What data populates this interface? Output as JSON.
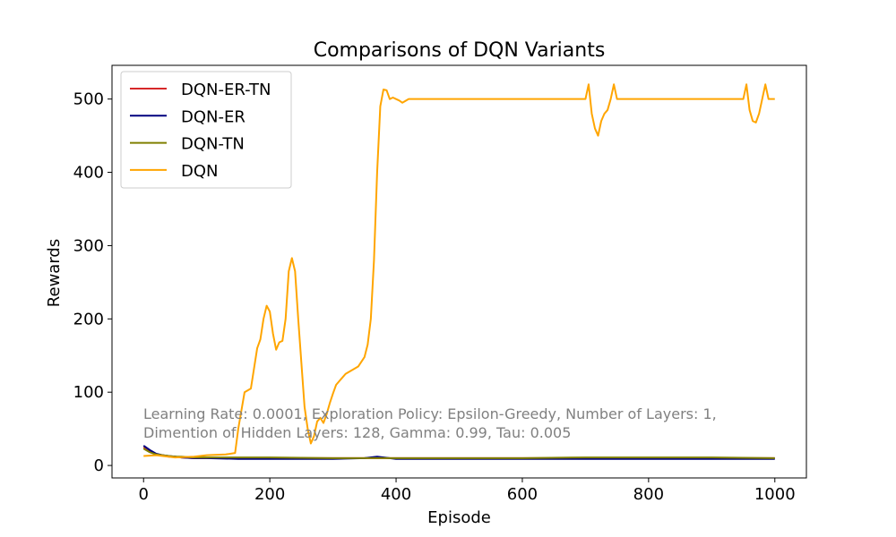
{
  "chart_data": {
    "type": "line",
    "title": "Comparisons of DQN Variants",
    "xlabel": "Episode",
    "ylabel": "Rewards",
    "xlim": [
      -50,
      1050
    ],
    "ylim": [
      -17,
      546
    ],
    "xticks": [
      0,
      200,
      400,
      600,
      800,
      1000
    ],
    "yticks": [
      0,
      100,
      200,
      300,
      400,
      500
    ],
    "xtick_labels": [
      "0",
      "200",
      "400",
      "600",
      "800",
      "1000"
    ],
    "ytick_labels": [
      "0",
      "100",
      "200",
      "300",
      "400",
      "500"
    ],
    "grid": false,
    "legend_position": "top-left",
    "annotation": [
      "Learning Rate: 0.0001, Exploration Policy: Epsilon-Greedy, Number of Layers: 1,",
      "Dimention of Hidden Layers: 128, Gamma: 0.99, Tau: 0.005"
    ],
    "series": [
      {
        "name": "DQN-ER-TN",
        "color": "#d62728",
        "x": [
          0,
          10,
          20,
          30,
          40,
          50,
          60,
          80,
          100,
          150,
          200,
          300,
          400,
          500,
          600,
          700,
          800,
          900,
          1000
        ],
        "y": [
          25,
          20,
          15,
          14,
          12,
          12,
          11,
          10,
          10,
          10,
          10,
          10,
          10,
          10,
          10,
          10,
          10,
          10,
          10
        ]
      },
      {
        "name": "DQN-ER",
        "color": "#00007f",
        "x": [
          0,
          10,
          20,
          30,
          40,
          50,
          60,
          80,
          100,
          150,
          200,
          300,
          350,
          370,
          400,
          500,
          600,
          700,
          800,
          900,
          1000
        ],
        "y": [
          27,
          21,
          16,
          14,
          13,
          12,
          11,
          10,
          10,
          9,
          9,
          9,
          10,
          12,
          9,
          9,
          9,
          9,
          9,
          9,
          9
        ]
      },
      {
        "name": "DQN-TN",
        "color": "#808000",
        "x": [
          0,
          10,
          20,
          30,
          40,
          50,
          60,
          80,
          100,
          150,
          200,
          300,
          400,
          500,
          600,
          700,
          800,
          900,
          1000
        ],
        "y": [
          23,
          18,
          15,
          14,
          13,
          12,
          12,
          11,
          11,
          11,
          11,
          10,
          10,
          10,
          10,
          11,
          11,
          11,
          10
        ]
      },
      {
        "name": "DQN",
        "color": "#ffa500",
        "x": [
          0,
          20,
          50,
          80,
          100,
          130,
          145,
          150,
          160,
          170,
          180,
          185,
          190,
          195,
          200,
          205,
          210,
          215,
          220,
          225,
          230,
          235,
          240,
          245,
          250,
          255,
          260,
          265,
          270,
          275,
          280,
          285,
          290,
          295,
          300,
          305,
          310,
          315,
          320,
          330,
          340,
          350,
          355,
          360,
          365,
          370,
          375,
          380,
          385,
          390,
          395,
          400,
          405,
          410,
          420,
          430,
          435,
          440,
          500,
          600,
          700,
          705,
          710,
          715,
          720,
          725,
          730,
          735,
          740,
          745,
          750,
          800,
          900,
          950,
          955,
          960,
          965,
          970,
          975,
          980,
          985,
          990,
          1000
        ],
        "y": [
          13,
          14,
          11,
          12,
          14,
          15,
          17,
          50,
          100,
          105,
          160,
          172,
          200,
          218,
          210,
          180,
          158,
          168,
          170,
          200,
          265,
          283,
          265,
          200,
          140,
          80,
          50,
          30,
          40,
          60,
          65,
          58,
          70,
          85,
          98,
          110,
          115,
          120,
          125,
          130,
          135,
          148,
          165,
          200,
          280,
          400,
          490,
          513,
          512,
          500,
          502,
          500,
          498,
          495,
          500,
          500,
          500,
          500,
          500,
          500,
          500,
          520,
          480,
          460,
          450,
          470,
          480,
          485,
          500,
          520,
          500,
          500,
          500,
          500,
          520,
          485,
          470,
          468,
          480,
          500,
          520,
          500,
          500
        ]
      }
    ]
  }
}
